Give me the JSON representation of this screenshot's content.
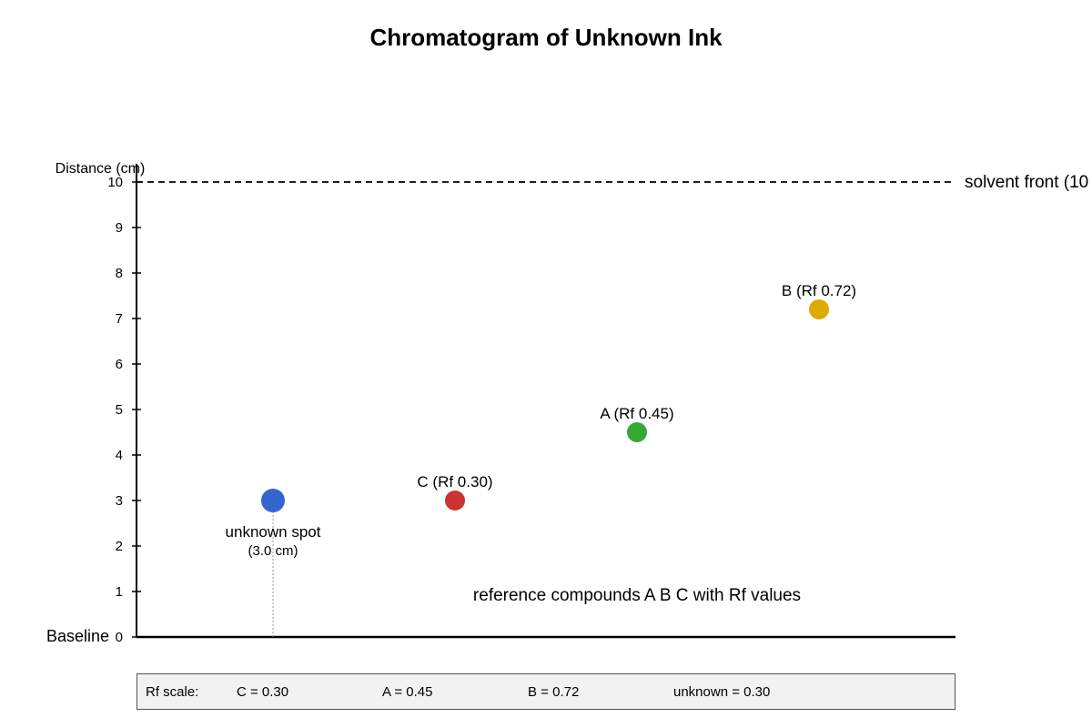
{
  "chart_data": {
    "type": "scatter",
    "title": "Chromatogram of Unknown Ink",
    "ylabel": "Distance (cm)",
    "ylim": [
      0,
      10
    ],
    "yticks": [
      0,
      1,
      2,
      3,
      4,
      5,
      6,
      7,
      8,
      9,
      10
    ],
    "baseline_label": "Baseline",
    "solvent_front": {
      "y": 10,
      "label": "solvent front (10"
    },
    "note": "reference compounds A B C with Rf values",
    "spots": [
      {
        "name": "unknown",
        "label": "unknown spot",
        "sublabel": "(3.0 cm)",
        "y": 3.0,
        "color": "#3366cc"
      },
      {
        "name": "C",
        "label": "C (Rf 0.30)",
        "y": 3.0,
        "color": "#cc3333"
      },
      {
        "name": "A",
        "label": "A (Rf 0.45)",
        "y": 4.5,
        "color": "#33aa33"
      },
      {
        "name": "B",
        "label": "B (Rf 0.72)",
        "y": 7.2,
        "color": "#ddaa00"
      }
    ]
  },
  "legend": {
    "label": "Rf scale:",
    "items": [
      "C = 0.30",
      "A = 0.45",
      "B = 0.72",
      "unknown = 0.30"
    ]
  }
}
